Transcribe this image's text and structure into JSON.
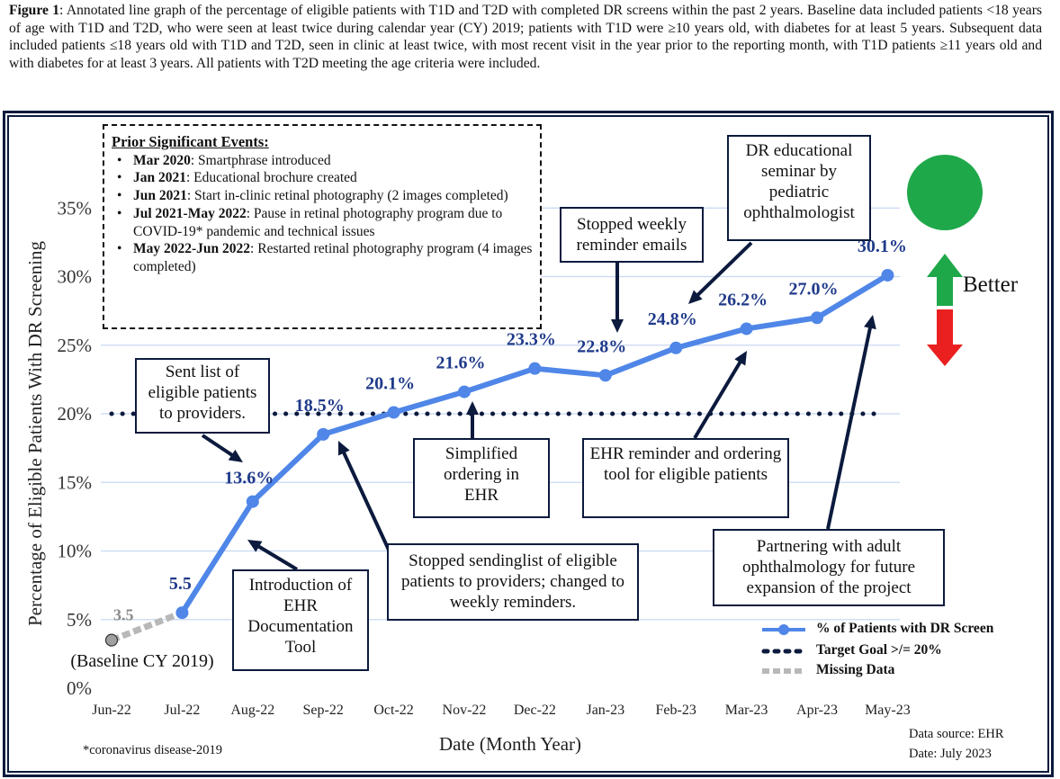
{
  "caption": {
    "label": "Figure 1",
    "text": ": Annotated line graph of the percentage of eligible patients with T1D and T2D with completed DR screens within the past 2 years. Baseline data included patients <18 years of age with T1D and T2D, who were seen at least twice during calendar year (CY) 2019; patients with T1D were ≥10 years old, with diabetes for at least 5 years. Subsequent data included patients ≤18 years old with T1D and T2D, seen in clinic at least twice, with most recent visit in the year prior to the reporting month, with T1D patients ≥11 years old and with diabetes for at least 3 years. All patients with T2D meeting the age criteria were included."
  },
  "events": {
    "heading": "Prior Significant Events:",
    "items": [
      {
        "bold": "Mar 2020",
        "text": ": Smartphrase introduced"
      },
      {
        "bold": "Jan 2021",
        "text": ": Educational brochure created"
      },
      {
        "bold": "Jun 2021",
        "text": ": Start in-clinic retinal photography (2 images completed)"
      },
      {
        "bold": "Jul 2021-May 2022",
        "text": ": Pause in retinal photography program due to COVID-19* pandemic and technical issues"
      },
      {
        "bold": "May 2022-Jun 2022",
        "text": ": Restarted retinal photography program (4 images completed)"
      }
    ]
  },
  "annotations": {
    "sent_list": "Sent list of eligible patients to providers.",
    "intro_ehr": "Introduction of EHR Documentation Tool",
    "stopped_sending": "Stopped sendinglist of eligible patients to providers; changed to weekly reminders.",
    "simplified": "Simplified ordering in EHR",
    "ehr_reminder": "EHR reminder and ordering tool for eligible patients",
    "stopped_weekly": "Stopped weekly reminder emails",
    "dr_seminar": "DR educational seminar by pediatric ophthalmologist",
    "partnering": "Partnering with adult ophthalmology for future expansion of the project",
    "baseline": "(Baseline CY 2019)"
  },
  "better_label": "Better",
  "legend": {
    "series": "% of  Patients with DR Screen",
    "target": "Target Goal >/= 20%",
    "missing": "Missing Data"
  },
  "footnote": "*coronavirus disease-2019",
  "source": "Data source: EHR",
  "date": "Date: July 2023",
  "colors": {
    "line": "#4f86e8",
    "label": "#1f3a8a",
    "target": "#0b1a3d",
    "missing": "#b8b8b8",
    "grid": "#c8d8f2",
    "good": "#1fa84a",
    "bad": "#ea1f1f"
  },
  "chart_data": {
    "type": "line",
    "xlabel": "Date (Month Year)",
    "ylabel": "Percentage of Eligible Patients With DR Screening",
    "categories": [
      "Jun-22",
      "Jul-22",
      "Aug-22",
      "Sep-22",
      "Oct-22",
      "Nov-22",
      "Dec-22",
      "Jan-23",
      "Feb-23",
      "Mar-23",
      "Apr-23",
      "May-23"
    ],
    "ylim": [
      0,
      35
    ],
    "yticks": [
      "0%",
      "5%",
      "10%",
      "15%",
      "20%",
      "25%",
      "30%",
      "35%"
    ],
    "grid": true,
    "legend_position": "bottom-right",
    "series": [
      {
        "name": "% of  Patients with DR Screen",
        "values": [
          null,
          5.5,
          13.6,
          18.5,
          20.1,
          21.6,
          23.3,
          22.8,
          24.8,
          26.2,
          27.0,
          30.1
        ],
        "labels": [
          "",
          "5.5",
          "13.6%",
          "18.5%",
          "20.1%",
          "21.6%",
          "23.3%",
          "22.8%",
          "24.8%",
          "26.2%",
          "27.0%",
          "30.1%"
        ]
      },
      {
        "name": "Target Goal >/= 20%",
        "values": [
          20,
          20,
          20,
          20,
          20,
          20,
          20,
          20,
          20,
          20,
          20,
          20
        ]
      },
      {
        "name": "Missing Data",
        "values": [
          3.5,
          5.5,
          null,
          null,
          null,
          null,
          null,
          null,
          null,
          null,
          null,
          null
        ],
        "labels": [
          "3.5",
          "",
          "",
          "",
          "",
          "",
          "",
          "",
          "",
          "",
          "",
          ""
        ]
      }
    ]
  }
}
